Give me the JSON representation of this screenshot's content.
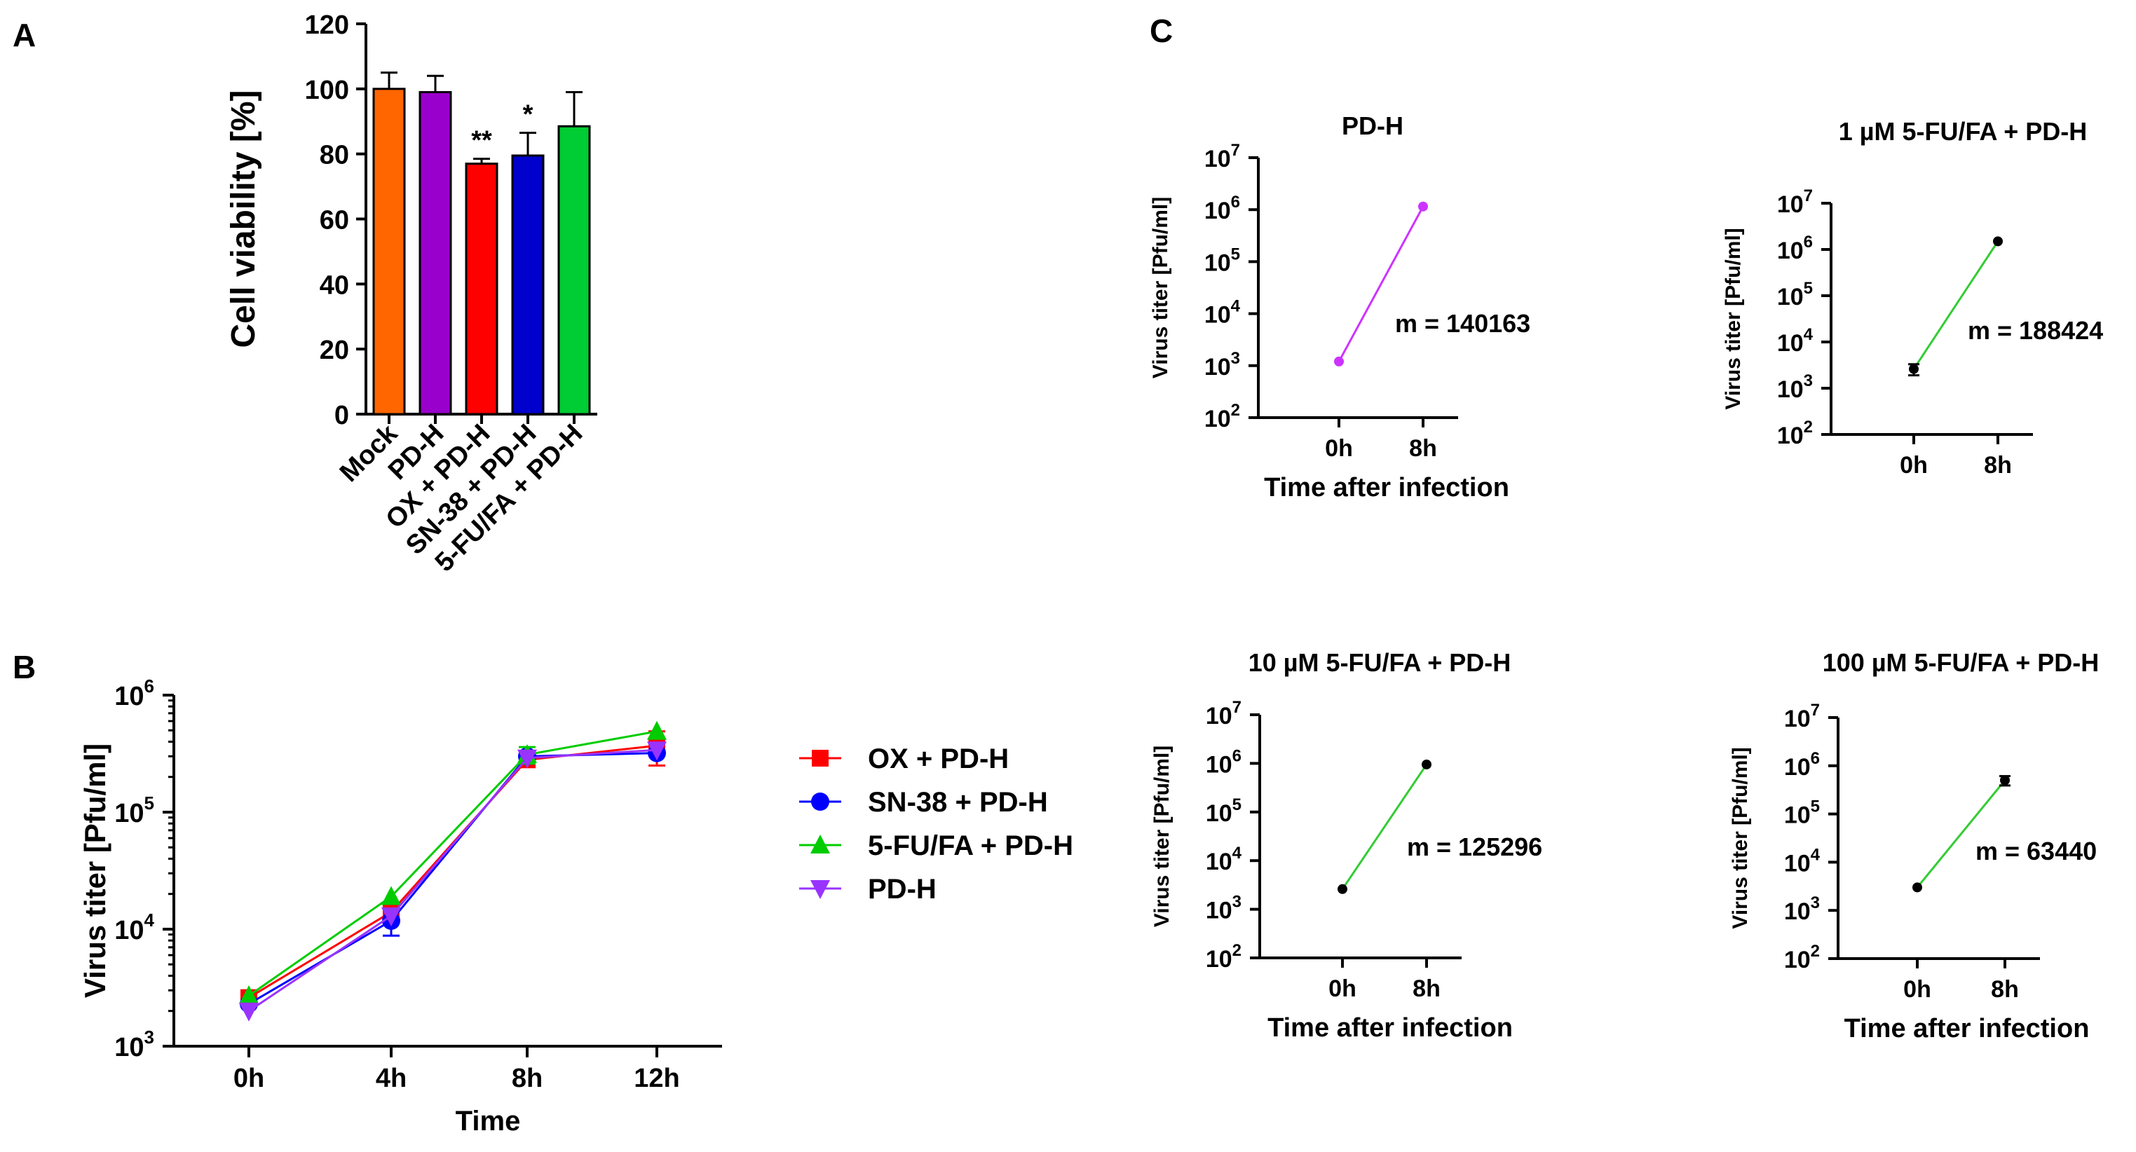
{
  "panels": {
    "A": "A",
    "B": "B",
    "C": "C"
  },
  "chart_data": [
    {
      "id": "A",
      "type": "bar",
      "title": "",
      "xlabel": "",
      "ylabel": "Cell viability [%]",
      "ylim": [
        0,
        120
      ],
      "yticks": [
        0,
        20,
        40,
        60,
        80,
        100,
        120
      ],
      "categories": [
        "Mock",
        "PD-H",
        "OX + PD-H",
        "SN-38 + PD-H",
        "5-FU/FA + PD-H"
      ],
      "values": [
        100,
        99,
        77,
        79.5,
        88.5
      ],
      "errors": [
        5,
        5,
        1.5,
        7,
        10.5
      ],
      "colors": [
        "#ff6600",
        "#9900cc",
        "#ff0000",
        "#0000cc",
        "#00cc33"
      ],
      "annotations": [
        "",
        "",
        "**",
        "*",
        ""
      ],
      "grid": false
    },
    {
      "id": "B",
      "type": "line",
      "title": "",
      "xlabel": "Time",
      "ylabel": "Virus titer [Pfu/ml]",
      "yscale": "log",
      "ylim": [
        1000,
        1000000
      ],
      "yticks": [
        {
          "base": "10",
          "exp": "3"
        },
        {
          "base": "10",
          "exp": "4"
        },
        {
          "base": "10",
          "exp": "5"
        },
        {
          "base": "10",
          "exp": "6"
        }
      ],
      "categories": [
        "0h",
        "4h",
        "8h",
        "12h"
      ],
      "legend_position": "right",
      "series": [
        {
          "name": "OX + PD-H",
          "color": "#ff0000",
          "marker": "square",
          "values": [
            2600,
            14000,
            280000,
            370000
          ],
          "errors": [
            0,
            0,
            0,
            120000
          ]
        },
        {
          "name": "SN-38 + PD-H",
          "color": "#0000ff",
          "marker": "circle",
          "values": [
            2300,
            11800,
            300000,
            320000
          ],
          "errors": [
            0,
            3000,
            0,
            0
          ]
        },
        {
          "name": "5-FU/FA + PD-H",
          "color": "#00cc00",
          "marker": "triangle-up",
          "values": [
            2700,
            19000,
            310000,
            490000
          ],
          "errors": [
            0,
            0,
            50000,
            0
          ]
        },
        {
          "name": "PD-H",
          "color": "#9933ff",
          "marker": "triangle-down",
          "values": [
            2000,
            13000,
            290000,
            340000
          ],
          "errors": [
            0,
            0,
            0,
            0
          ]
        }
      ],
      "grid": false
    },
    {
      "id": "C1",
      "type": "line",
      "title": "PD-H",
      "xlabel": "Time after infection",
      "ylabel": "Virus titer [Pfu/ml]",
      "yscale": "log",
      "ylim": [
        100,
        10000000
      ],
      "categories": [
        "0h",
        "8h"
      ],
      "values": [
        1200,
        1150000
      ],
      "line_color": "#cc33ff",
      "point_color": "#cc33ff",
      "annotation": "m = 140163"
    },
    {
      "id": "C2",
      "type": "line",
      "title": "1 µM 5-FU/FA + PD-H",
      "xlabel": "",
      "ylabel": "Virus titer [Pfu/ml]",
      "yscale": "log",
      "ylim": [
        100,
        10000000
      ],
      "categories": [
        "0h",
        "8h"
      ],
      "values": [
        2600,
        1500000
      ],
      "errors": [
        700,
        0
      ],
      "line_color": "#33cc33",
      "point_color": "#000000",
      "annotation": "m = 188424"
    },
    {
      "id": "C3",
      "type": "line",
      "title": "10 µM 5-FU/FA + PD-H",
      "xlabel": "Time after infection",
      "ylabel": "Virus titer [Pfu/ml]",
      "yscale": "log",
      "ylim": [
        100,
        10000000
      ],
      "categories": [
        "0h",
        "8h"
      ],
      "values": [
        2600,
        950000
      ],
      "line_color": "#33cc33",
      "point_color": "#000000",
      "annotation": "m = 125296"
    },
    {
      "id": "C4",
      "type": "line",
      "title": "100 µM 5-FU/FA + PD-H",
      "xlabel": "Time after infection",
      "ylabel": "Virus titer [Pfu/ml]",
      "yscale": "log",
      "ylim": [
        100,
        10000000
      ],
      "categories": [
        "0h",
        "8h"
      ],
      "values": [
        3000,
        500000
      ],
      "errors": [
        0,
        110000
      ],
      "line_color": "#33cc33",
      "point_color": "#000000",
      "annotation": "m = 63440"
    }
  ]
}
